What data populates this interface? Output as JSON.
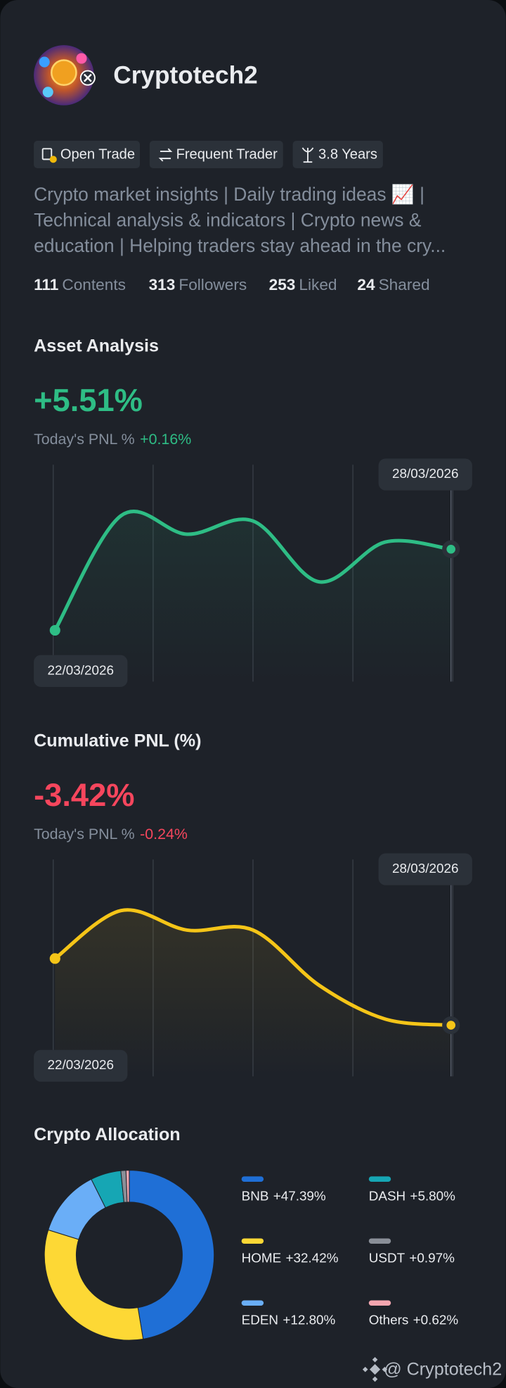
{
  "profile": {
    "name": "Cryptotech2",
    "tags": [
      "Open Trade",
      "Frequent Trader",
      "3.8 Years"
    ],
    "bio": [
      "Crypto market insights | Daily trading ideas 📈 |",
      "Technical analysis & indicators | Crypto news &",
      "education | Helping traders stay ahead in the cry..."
    ],
    "stats": [
      {
        "value": 111,
        "label": "Contents"
      },
      {
        "value": 313,
        "label": "Followers"
      },
      {
        "value": 253,
        "label": "Liked"
      },
      {
        "value": 24,
        "label": "Shared"
      }
    ]
  },
  "chart_data": [
    {
      "type": "line",
      "title": "Asset Analysis",
      "change": "+5.51%",
      "today_label": "Today's PNL %",
      "today_value": "+0.16%",
      "change_color": "#2ebd85",
      "categories": [
        "22/03/2026",
        null,
        null,
        null,
        null,
        null,
        "28/03/2026"
      ],
      "values": [
        0.91,
        7.41,
        6.36,
        7.11,
        3.66,
        5.91,
        5.51
      ],
      "color": "#2ebd85",
      "ylim": [
        -2,
        10.3
      ]
    },
    {
      "type": "line",
      "title": "Cumulative PNL (%)",
      "change": "-3.42%",
      "today_label": "Today's PNL %",
      "today_value": "-0.24%",
      "change_color": "#f6465d",
      "categories": [
        "22/03/2026",
        null,
        null,
        null,
        null,
        null,
        "28/03/2026"
      ],
      "values": [
        0.33,
        3.03,
        1.93,
        1.93,
        -1.17,
        -3.07,
        -3.42
      ],
      "color": "#f5c518",
      "ylim": [
        -6.3,
        5.9
      ]
    },
    {
      "type": "pie",
      "title": "Crypto Allocation",
      "categories": [
        "BNB",
        "HOME",
        "EDEN",
        "DASH",
        "USDT",
        "Others"
      ],
      "values": [
        47.39,
        32.42,
        12.8,
        5.8,
        0.97,
        0.62
      ],
      "value_labels": [
        "+47.39%",
        "+32.42%",
        "+12.80%",
        "+5.80%",
        "+0.97%",
        "+0.62%"
      ],
      "colors": [
        "#1f6fd6",
        "#fdd835",
        "#6aaef7",
        "#16a6b4",
        "#8a8f98",
        "#f4a6b0"
      ]
    }
  ],
  "footer": {
    "handle": "@ Cryptotech2"
  }
}
